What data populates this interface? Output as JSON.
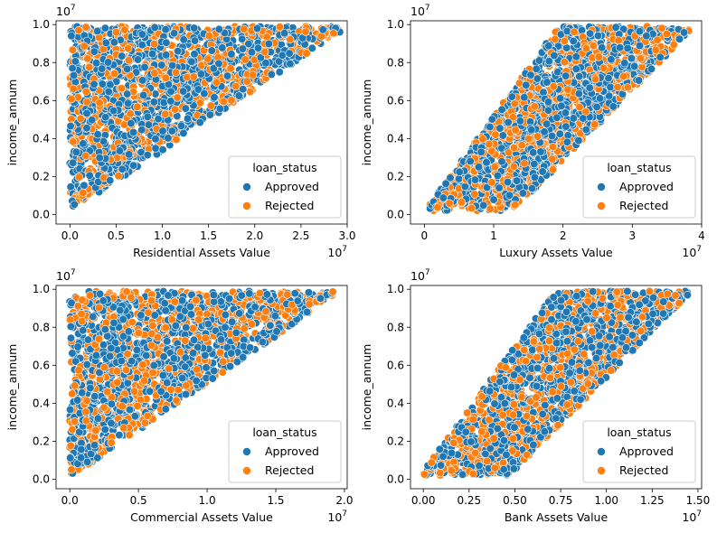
{
  "colors": {
    "approved": "#1f77b4",
    "rejected": "#ff7f0e"
  },
  "chart_data": [
    {
      "type": "scatter",
      "xlabel": "Residential Assets Value",
      "ylabel": "income_annum",
      "x_exponent": "1e7",
      "y_exponent": "1e7",
      "xlim": [
        -0.15,
        3.0
      ],
      "ylim": [
        -0.05,
        1.02
      ],
      "x_ticks": [
        "0.0",
        "0.5",
        "1.0",
        "1.5",
        "2.0",
        "2.5",
        "3.0"
      ],
      "x_tick_values": [
        0,
        0.5,
        1,
        1.5,
        2,
        2.5,
        3
      ],
      "y_ticks": [
        "0.0",
        "0.2",
        "0.4",
        "0.6",
        "0.8",
        "1.0"
      ],
      "y_tick_values": [
        0,
        0.2,
        0.4,
        0.6,
        0.8,
        1.0
      ],
      "region": {
        "kind": "upper",
        "x_min": 0,
        "x_max": 2.92,
        "y_min": 0.02,
        "y_max": 0.99
      },
      "legend": {
        "title": "loan_status",
        "entries": [
          "Approved",
          "Rejected"
        ],
        "position": "lower-right"
      },
      "series": [
        {
          "name": "Approved",
          "color": "#1f77b4"
        },
        {
          "name": "Rejected",
          "color": "#ff7f0e"
        }
      ],
      "rejected_fraction": 0.38
    },
    {
      "type": "scatter",
      "xlabel": "Luxury Assets Value",
      "ylabel": "income_annum",
      "x_exponent": "1e7",
      "y_exponent": "1e7",
      "xlim": [
        -0.2,
        4.0
      ],
      "ylim": [
        -0.05,
        1.02
      ],
      "x_ticks": [
        "0",
        "1",
        "2",
        "3",
        "4"
      ],
      "x_tick_values": [
        0,
        1,
        2,
        3,
        4
      ],
      "y_ticks": [
        "0.0",
        "0.2",
        "0.4",
        "0.6",
        "0.8",
        "1.0"
      ],
      "y_tick_values": [
        0,
        0.2,
        0.4,
        0.6,
        0.8,
        1.0
      ],
      "region": {
        "kind": "band",
        "x_min": 0.05,
        "x_max": 3.9,
        "y_min": 0.02,
        "y_max": 0.99
      },
      "legend": {
        "title": "loan_status",
        "entries": [
          "Approved",
          "Rejected"
        ],
        "position": "lower-right"
      },
      "series": [
        {
          "name": "Approved",
          "color": "#1f77b4"
        },
        {
          "name": "Rejected",
          "color": "#ff7f0e"
        }
      ],
      "rejected_fraction": 0.38
    },
    {
      "type": "scatter",
      "xlabel": "Commercial Assets Value",
      "ylabel": "income_annum",
      "x_exponent": "1e7",
      "y_exponent": "1e7",
      "xlim": [
        -0.1,
        2.02
      ],
      "ylim": [
        -0.05,
        1.02
      ],
      "x_ticks": [
        "0.0",
        "0.5",
        "1.0",
        "1.5",
        "2.0"
      ],
      "x_tick_values": [
        0,
        0.5,
        1,
        1.5,
        2
      ],
      "y_ticks": [
        "0.0",
        "0.2",
        "0.4",
        "0.6",
        "0.8",
        "1.0"
      ],
      "y_tick_values": [
        0,
        0.2,
        0.4,
        0.6,
        0.8,
        1.0
      ],
      "region": {
        "kind": "upper",
        "x_min": 0,
        "x_max": 1.92,
        "y_min": 0.02,
        "y_max": 0.99
      },
      "legend": {
        "title": "loan_status",
        "entries": [
          "Approved",
          "Rejected"
        ],
        "position": "lower-right"
      },
      "series": [
        {
          "name": "Approved",
          "color": "#1f77b4"
        },
        {
          "name": "Rejected",
          "color": "#ff7f0e"
        }
      ],
      "rejected_fraction": 0.38
    },
    {
      "type": "scatter",
      "xlabel": "Bank Assets Value",
      "ylabel": "income_annum",
      "x_exponent": "1e7",
      "y_exponent": "1e7",
      "xlim": [
        -0.07,
        1.52
      ],
      "ylim": [
        -0.05,
        1.02
      ],
      "x_ticks": [
        "0.00",
        "0.25",
        "0.50",
        "0.75",
        "1.00",
        "1.25",
        "1.50"
      ],
      "x_tick_values": [
        0,
        0.25,
        0.5,
        0.75,
        1,
        1.25,
        1.5
      ],
      "y_ticks": [
        "0.0",
        "0.2",
        "0.4",
        "0.6",
        "0.8",
        "1.0"
      ],
      "y_tick_values": [
        0,
        0.2,
        0.4,
        0.6,
        0.8,
        1.0
      ],
      "region": {
        "kind": "band",
        "x_min": 0,
        "x_max": 1.47,
        "y_min": 0.02,
        "y_max": 0.99
      },
      "legend": {
        "title": "loan_status",
        "entries": [
          "Approved",
          "Rejected"
        ],
        "position": "lower-right"
      },
      "series": [
        {
          "name": "Approved",
          "color": "#1f77b4"
        },
        {
          "name": "Rejected",
          "color": "#ff7f0e"
        }
      ],
      "rejected_fraction": 0.38
    }
  ]
}
